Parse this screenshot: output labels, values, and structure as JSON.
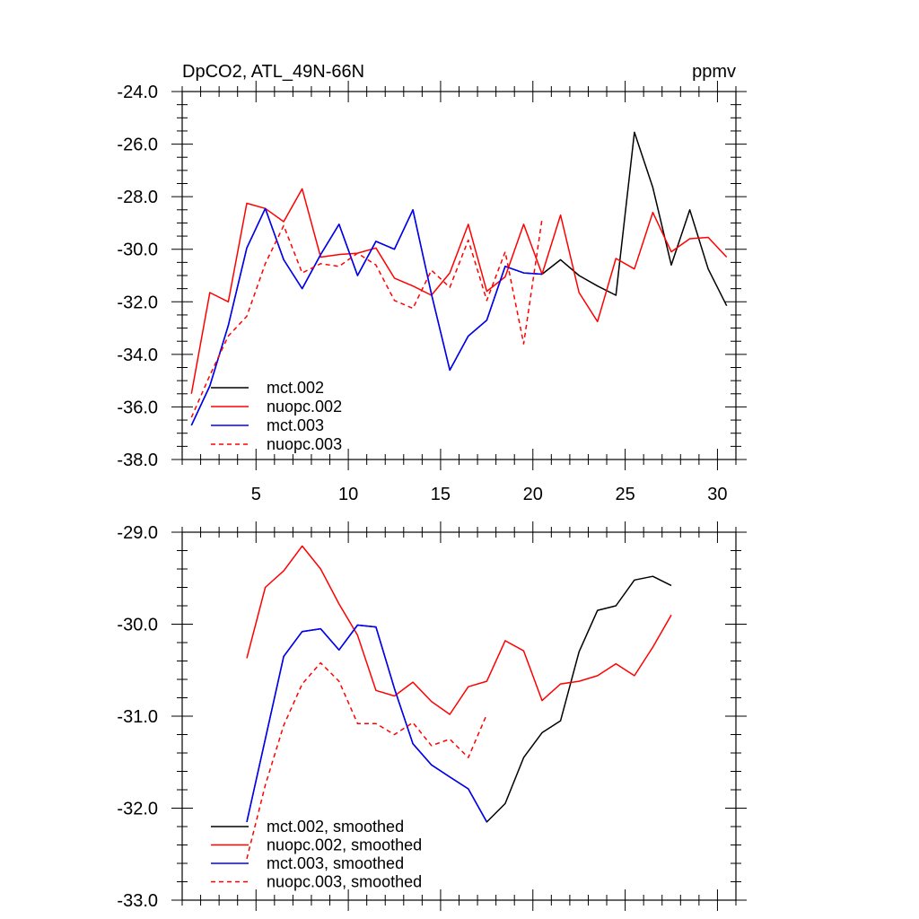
{
  "chart_data": [
    {
      "type": "line",
      "title": "DpCO2, ATL_49N-66N",
      "units": "ppmv",
      "xlim": [
        1,
        31
      ],
      "ylim": [
        -38,
        -24
      ],
      "x_ticks": [
        5,
        10,
        15,
        20,
        25,
        30
      ],
      "x_tick_labels": [
        "5",
        "10",
        "15",
        "20",
        "25",
        "30"
      ],
      "y_ticks": [
        -24,
        -26,
        -28,
        -30,
        -32,
        -34,
        -36,
        -38
      ],
      "y_tick_labels": [
        "-24.0",
        "-26.0",
        "-28.0",
        "-30.0",
        "-32.0",
        "-34.0",
        "-36.0",
        "-38.0"
      ],
      "legend_position": "bottom-left",
      "series": [
        {
          "name": "mct.002",
          "color": "#000000",
          "dash": "solid",
          "x": [
            1.5,
            2.5,
            3.5,
            4.5,
            5.5,
            6.5,
            7.5,
            8.5,
            9.5,
            10.5,
            11.5,
            12.5,
            13.5,
            14.5,
            15.5,
            16.5,
            17.5,
            18.5,
            19.5,
            20.5,
            21.5,
            22.5,
            23.5,
            24.5,
            25.5,
            26.5,
            27.5,
            28.5,
            29.5,
            30.5
          ],
          "values": [
            -36.7,
            -35.2,
            -32.9,
            -29.95,
            -28.45,
            -30.4,
            -31.5,
            -30.2,
            -29.05,
            -31.0,
            -29.7,
            -30.0,
            -28.5,
            -31.7,
            -34.6,
            -33.3,
            -32.7,
            -30.65,
            -30.9,
            -30.95,
            -30.4,
            -31.0,
            -31.4,
            -31.75,
            -25.55,
            -27.65,
            -30.6,
            -28.5,
            -30.75,
            -32.15
          ]
        },
        {
          "name": "nuopc.002",
          "color": "#ff0000",
          "dash": "solid",
          "x": [
            1.5,
            2.5,
            3.5,
            4.5,
            5.5,
            6.5,
            7.5,
            8.5,
            9.5,
            10.5,
            11.5,
            12.5,
            13.5,
            14.5,
            15.5,
            16.5,
            17.5,
            18.5,
            19.5,
            20.5,
            21.5,
            22.5,
            23.5,
            24.5,
            25.5,
            26.5,
            27.5,
            28.5,
            29.5,
            30.5
          ],
          "values": [
            -35.5,
            -31.65,
            -32.0,
            -28.25,
            -28.45,
            -28.95,
            -27.7,
            -30.3,
            -30.2,
            -30.15,
            -29.95,
            -31.1,
            -31.4,
            -31.75,
            -30.9,
            -29.05,
            -31.6,
            -31.05,
            -29.05,
            -30.95,
            -28.7,
            -31.65,
            -32.75,
            -30.35,
            -30.75,
            -28.6,
            -30.1,
            -29.6,
            -29.55,
            -30.3
          ]
        },
        {
          "name": "mct.003",
          "color": "#0000ff",
          "dash": "solid",
          "x": [
            1.5,
            2.5,
            3.5,
            4.5,
            5.5,
            6.5,
            7.5,
            8.5,
            9.5,
            10.5,
            11.5,
            12.5,
            13.5,
            14.5,
            15.5,
            16.5,
            17.5,
            18.5,
            19.5,
            20.5
          ],
          "values": [
            -36.7,
            -35.2,
            -32.9,
            -29.95,
            -28.45,
            -30.4,
            -31.5,
            -30.2,
            -29.05,
            -31.0,
            -29.7,
            -30.0,
            -28.5,
            -31.7,
            -34.6,
            -33.3,
            -32.7,
            -30.65,
            -30.9,
            -30.95
          ]
        },
        {
          "name": "nuopc.003",
          "color": "#ff0000",
          "dash": "dashed",
          "x": [
            1.5,
            2.5,
            3.5,
            4.5,
            5.5,
            6.5,
            7.5,
            8.5,
            9.5,
            10.5,
            11.5,
            12.5,
            13.5,
            14.5,
            15.5,
            16.5,
            17.5,
            18.5,
            19.5,
            20.5
          ],
          "values": [
            -36.4,
            -34.8,
            -33.3,
            -32.55,
            -30.55,
            -29.1,
            -30.9,
            -30.55,
            -30.65,
            -30.15,
            -30.6,
            -31.95,
            -32.25,
            -30.8,
            -31.45,
            -29.65,
            -31.95,
            -30.1,
            -33.6,
            -28.85
          ]
        }
      ]
    },
    {
      "type": "line",
      "title": "",
      "xlim": [
        1,
        31
      ],
      "ylim": [
        -33,
        -29
      ],
      "x_ticks": [
        5,
        10,
        15,
        20,
        25,
        30
      ],
      "x_tick_labels": [],
      "y_ticks": [
        -29,
        -30,
        -31,
        -32,
        -33
      ],
      "y_tick_labels": [
        "-29.0",
        "-30.0",
        "-31.0",
        "-32.0",
        "-33.0"
      ],
      "legend_position": "bottom-left",
      "series": [
        {
          "name": "mct.002, smoothed",
          "color": "#000000",
          "dash": "solid",
          "x": [
            4.5,
            5.5,
            6.5,
            7.5,
            8.5,
            9.5,
            10.5,
            11.5,
            12.5,
            13.5,
            14.5,
            15.5,
            16.5,
            17.5,
            18.5,
            19.5,
            20.5,
            21.5,
            22.5,
            23.5,
            24.5,
            25.5,
            26.5,
            27.5
          ],
          "values": [
            -32.15,
            -31.25,
            -30.35,
            -30.08,
            -30.05,
            -30.28,
            -30.01,
            -30.03,
            -30.7,
            -31.3,
            -31.53,
            -31.66,
            -31.79,
            -32.15,
            -31.95,
            -31.45,
            -31.18,
            -31.05,
            -30.3,
            -29.85,
            -29.8,
            -29.52,
            -29.48,
            -29.58
          ]
        },
        {
          "name": "nuopc.002, smoothed",
          "color": "#ff0000",
          "dash": "solid",
          "x": [
            4.5,
            5.5,
            6.5,
            7.5,
            8.5,
            9.5,
            10.5,
            11.5,
            12.5,
            13.5,
            14.5,
            15.5,
            16.5,
            17.5,
            18.5,
            19.5,
            20.5,
            21.5,
            22.5,
            23.5,
            24.5,
            25.5,
            26.5,
            27.5
          ],
          "values": [
            -30.37,
            -29.6,
            -29.42,
            -29.15,
            -29.4,
            -29.78,
            -30.12,
            -30.72,
            -30.78,
            -30.63,
            -30.84,
            -30.98,
            -30.68,
            -30.62,
            -30.18,
            -30.29,
            -30.83,
            -30.65,
            -30.62,
            -30.56,
            -30.43,
            -30.56,
            -30.25,
            -29.9
          ]
        },
        {
          "name": "mct.003, smoothed",
          "color": "#0000ff",
          "dash": "solid",
          "x": [
            4.5,
            5.5,
            6.5,
            7.5,
            8.5,
            9.5,
            10.5,
            11.5,
            12.5,
            13.5,
            14.5,
            15.5,
            16.5,
            17.5
          ],
          "values": [
            -32.15,
            -31.25,
            -30.35,
            -30.08,
            -30.05,
            -30.28,
            -30.01,
            -30.03,
            -30.7,
            -31.3,
            -31.53,
            -31.66,
            -31.79,
            -32.15
          ]
        },
        {
          "name": "nuopc.003, smoothed",
          "color": "#ff0000",
          "dash": "dashed",
          "x": [
            4.5,
            5.5,
            6.5,
            7.5,
            8.5,
            9.5,
            10.5,
            11.5,
            12.5,
            13.5,
            14.5,
            15.5,
            16.5,
            17.5
          ],
          "values": [
            -32.55,
            -31.75,
            -31.1,
            -30.65,
            -30.42,
            -30.62,
            -31.08,
            -31.08,
            -31.2,
            -31.07,
            -31.32,
            -31.25,
            -31.45,
            -30.98
          ]
        }
      ]
    }
  ]
}
